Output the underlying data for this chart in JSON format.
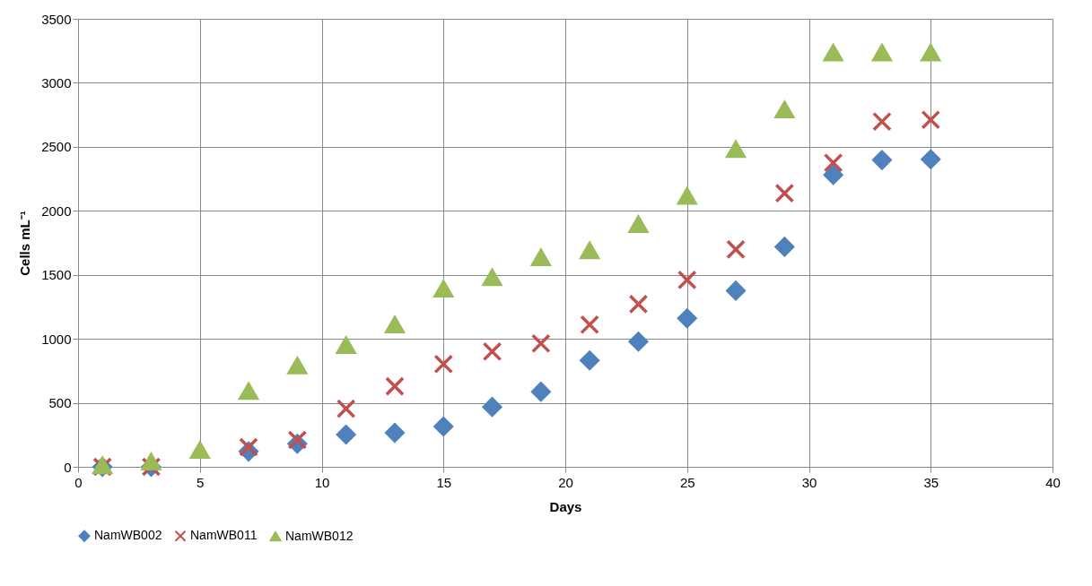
{
  "chart_data": {
    "type": "scatter",
    "xlabel": "Days",
    "ylabel": "Cells mL⁻¹",
    "x": [
      1,
      3,
      5,
      7,
      9,
      11,
      13,
      15,
      17,
      19,
      21,
      23,
      25,
      27,
      29,
      31,
      33,
      35
    ],
    "xlim": [
      0,
      40
    ],
    "xticks": [
      0,
      5,
      10,
      15,
      20,
      25,
      30,
      35,
      40
    ],
    "ylim": [
      0,
      3500
    ],
    "yticks": [
      0,
      500,
      1000,
      1500,
      2000,
      2500,
      3000,
      3500
    ],
    "grid": true,
    "legend": "bottom",
    "series": [
      {
        "name": "NamWB002",
        "color": "#4f81bd",
        "marker": "diamond",
        "values": [
          0,
          0,
          null,
          120,
          180,
          252,
          266,
          315,
          468,
          587,
          831,
          978,
          1160,
          1376,
          1719,
          2280,
          2397,
          2403
        ]
      },
      {
        "name": "NamWB011",
        "color": "#c0504d",
        "marker": "cross",
        "values": [
          0,
          0,
          null,
          154,
          210,
          454,
          629,
          803,
          901,
          964,
          1111,
          1271,
          1460,
          1698,
          2138,
          2375,
          2697,
          2711
        ]
      },
      {
        "name": "NamWB012",
        "color": "#9bbb59",
        "marker": "triangle",
        "values": [
          10,
          40,
          130,
          590,
          790,
          950,
          1110,
          1390,
          1480,
          1635,
          1690,
          1895,
          2115,
          2480,
          2790,
          3235,
          3235,
          3235
        ]
      }
    ]
  }
}
